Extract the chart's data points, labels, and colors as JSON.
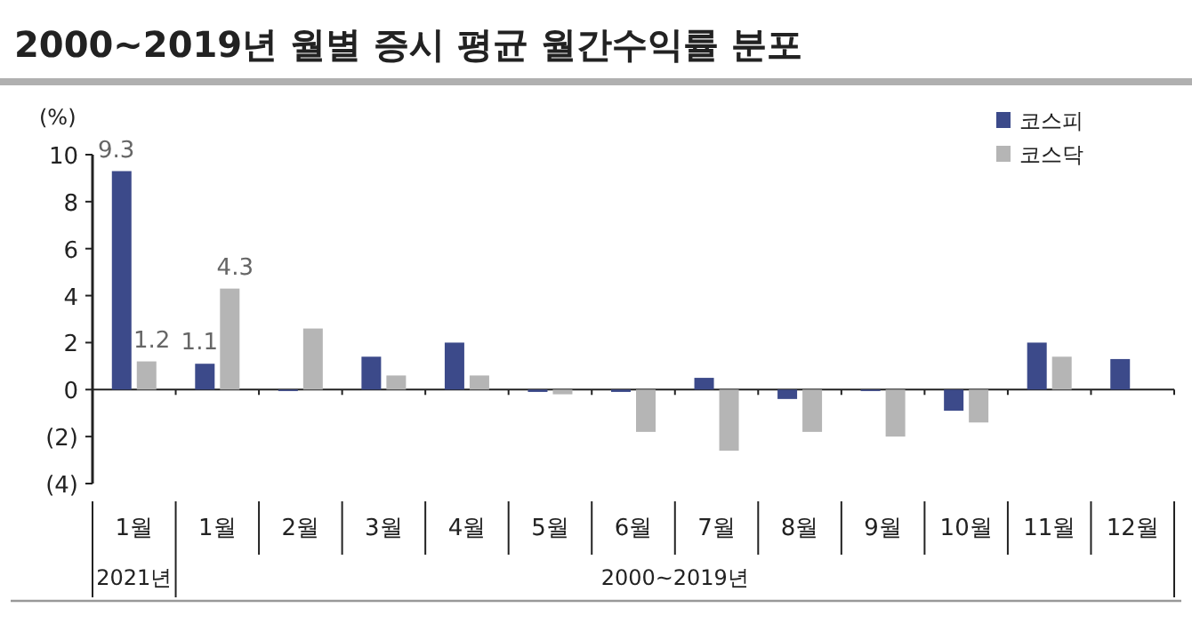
{
  "chart_data": {
    "type": "bar",
    "title": "2000~2019년 월별 증시 평균 월간수익률 분포",
    "ylabel": "(%)",
    "categories": [
      "1월",
      "1월",
      "2월",
      "3월",
      "4월",
      "5월",
      "6월",
      "7월",
      "8월",
      "9월",
      "10월",
      "11월",
      "12월"
    ],
    "series": [
      {
        "name": "코스피",
        "color": "#3c4a8a",
        "values": [
          9.3,
          1.1,
          0.0,
          1.4,
          2.0,
          -0.1,
          -0.1,
          0.5,
          -0.4,
          0.0,
          -0.9,
          2.0,
          1.3
        ],
        "value_labels": [
          "9.3",
          "1.1",
          null,
          null,
          null,
          null,
          null,
          null,
          null,
          null,
          null,
          null,
          null
        ]
      },
      {
        "name": "코스닥",
        "color": "#b5b5b5",
        "values": [
          1.2,
          4.3,
          2.6,
          0.6,
          0.6,
          -0.2,
          -1.8,
          -2.6,
          -1.8,
          -2.0,
          -1.4,
          1.4,
          null
        ],
        "value_labels": [
          "1.2",
          "4.3",
          null,
          null,
          null,
          null,
          null,
          null,
          null,
          null,
          null,
          null,
          null
        ]
      }
    ],
    "ylim": [
      -4,
      10
    ],
    "yticks": [
      {
        "value": -4,
        "label": "(4)"
      },
      {
        "value": -2,
        "label": "(2)"
      },
      0,
      2,
      4,
      6,
      8,
      10
    ],
    "annotations": [
      "2021년",
      "2000~2019년"
    ],
    "legend": "top right"
  }
}
